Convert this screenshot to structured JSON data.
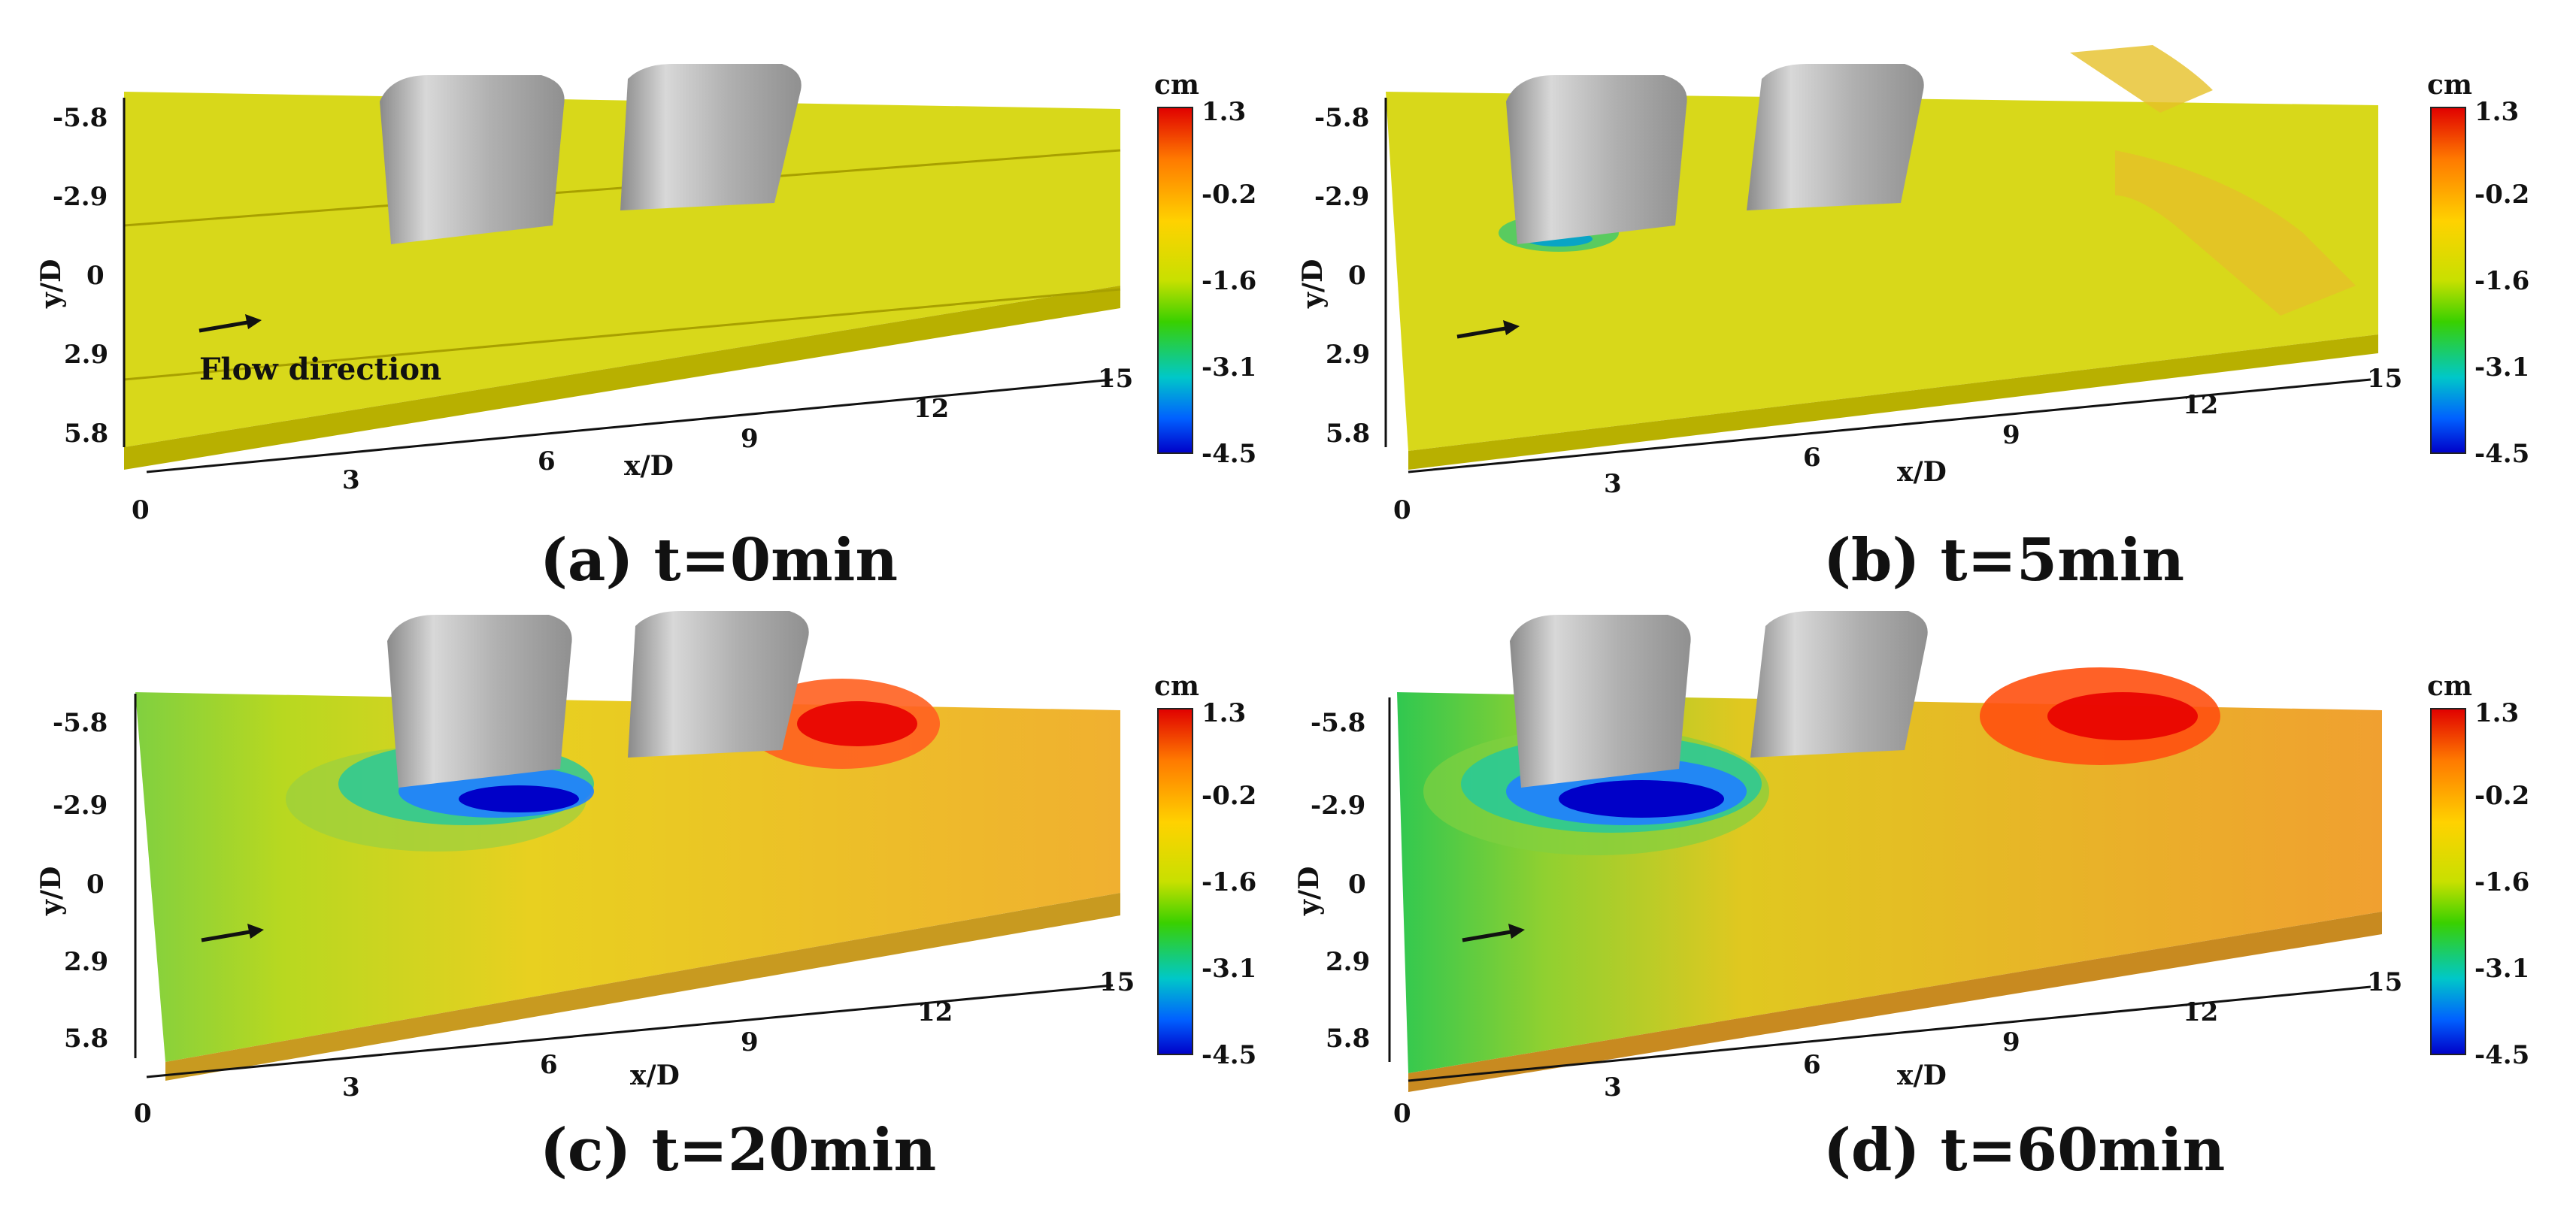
{
  "colorbar": {
    "unit": "cm",
    "ticks": [
      "1.3",
      "-0.2",
      "-1.6",
      "-3.1",
      "-4.5"
    ],
    "colors": [
      "#e00000",
      "#ff7a00",
      "#ffd200",
      "#d8e000",
      "#39d000",
      "#00c8c8",
      "#0060ff",
      "#0000c8"
    ]
  },
  "axes": {
    "x_label": "x/D",
    "y_label": "y/D",
    "x_ticks": [
      "0",
      "3",
      "6",
      "9",
      "12",
      "15"
    ],
    "y_ticks": [
      "-5.8",
      "-2.9",
      "0",
      "2.9",
      "5.8"
    ]
  },
  "flow_label": "Flow direction",
  "panels": [
    {
      "caption": "(a) t=0min"
    },
    {
      "caption": "(b) t=5min"
    },
    {
      "caption": "(c) t=20min"
    },
    {
      "caption": "(d) t=60min"
    }
  ]
}
